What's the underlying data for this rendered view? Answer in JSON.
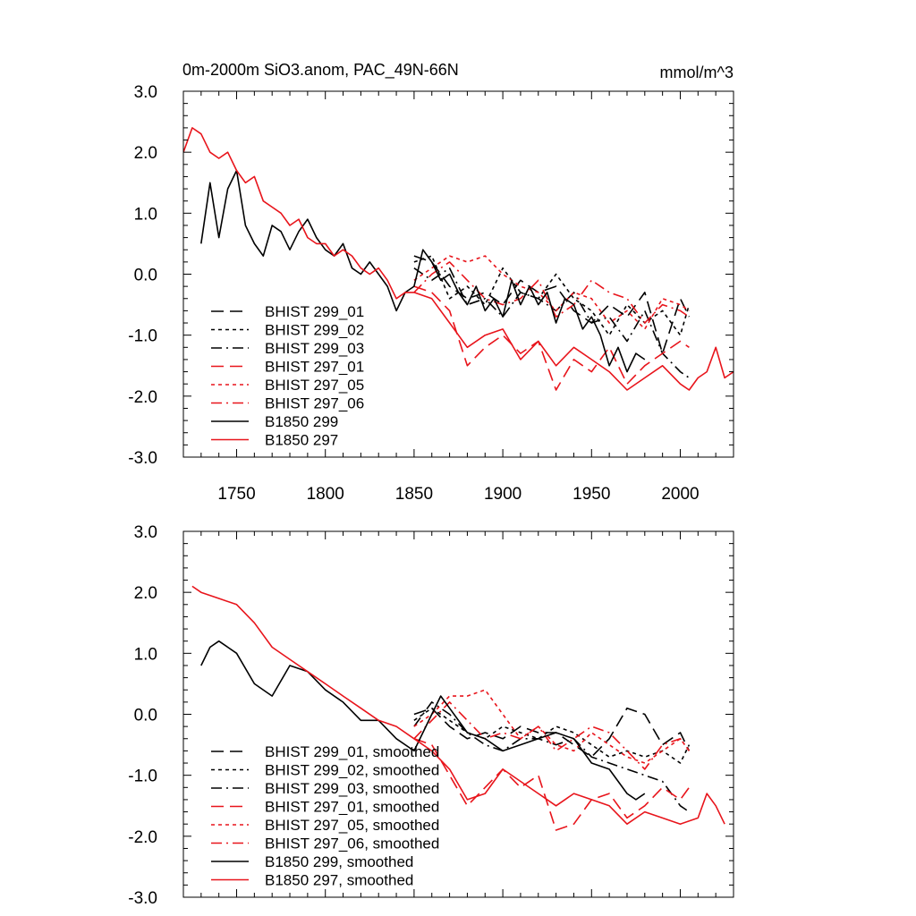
{
  "chart_data": [
    {
      "type": "line",
      "title": "0m-2000m SiO3.anom, PAC_49N-66N",
      "units": "mmol/m^3",
      "xlim": [
        1720,
        2030
      ],
      "ylim": [
        -3.0,
        3.0
      ],
      "x_ticks": [
        1750,
        1800,
        1850,
        1900,
        1950,
        2000
      ],
      "x_tick_labels": [
        "1750",
        "1800",
        "1850",
        "1900",
        "1950",
        "2000"
      ],
      "y_ticks": [
        3.0,
        2.0,
        1.0,
        0.0,
        -1.0,
        -2.0,
        -3.0
      ],
      "y_tick_labels": [
        "3.0",
        "2.0",
        "1.0",
        "0.0",
        "-1.0",
        "-2.0",
        "-3.0"
      ],
      "grid": false,
      "legend_position": "bottom-left",
      "series": [
        {
          "name": "BHIST 299_01",
          "color": "#000000",
          "dash": "long-dash",
          "x": [
            1850,
            1860,
            1870,
            1880,
            1890,
            1900,
            1910,
            1920,
            1930,
            1940,
            1950,
            1960,
            1970,
            1980,
            1990,
            2000,
            2005
          ],
          "y": [
            0.3,
            0.2,
            -0.2,
            -0.4,
            -0.3,
            -0.5,
            -0.1,
            -0.3,
            -0.2,
            -0.6,
            -0.8,
            -0.5,
            -0.7,
            -0.3,
            -1.3,
            -0.4,
            -0.7
          ]
        },
        {
          "name": "BHIST 299_02",
          "color": "#000000",
          "dash": "short-dash",
          "x": [
            1850,
            1860,
            1870,
            1880,
            1890,
            1900,
            1910,
            1920,
            1930,
            1940,
            1950,
            1960,
            1970,
            1980,
            1990,
            2000,
            2005
          ],
          "y": [
            0.2,
            0.3,
            -0.4,
            -0.2,
            -0.5,
            0.1,
            -0.3,
            -0.4,
            0.0,
            -0.4,
            -0.6,
            -1.0,
            -0.5,
            -0.8,
            -0.6,
            -1.0,
            -0.5
          ]
        },
        {
          "name": "BHIST 299_03",
          "color": "#000000",
          "dash": "dash-dot",
          "x": [
            1850,
            1860,
            1870,
            1880,
            1890,
            1900,
            1910,
            1920,
            1930,
            1940,
            1950,
            1960,
            1970,
            1980,
            1990,
            2000,
            2005
          ],
          "y": [
            0.1,
            -0.1,
            0.1,
            -0.5,
            -0.4,
            -0.7,
            -0.3,
            -0.4,
            -0.6,
            -0.3,
            -0.8,
            -0.7,
            -1.1,
            -0.6,
            -1.3,
            -1.6,
            -1.7
          ]
        },
        {
          "name": "BHIST 297_01",
          "color": "#e8141b",
          "dash": "long-dash",
          "x": [
            1850,
            1860,
            1870,
            1880,
            1890,
            1900,
            1910,
            1920,
            1930,
            1940,
            1950,
            1960,
            1970,
            1980,
            1990,
            2000,
            2005
          ],
          "y": [
            -0.2,
            -0.3,
            -0.6,
            -1.5,
            -1.2,
            -1.0,
            -1.3,
            -1.1,
            -1.9,
            -1.4,
            -1.6,
            -1.2,
            -1.8,
            -1.5,
            -1.3,
            -1.1,
            -1.2
          ]
        },
        {
          "name": "BHIST 297_05",
          "color": "#e8141b",
          "dash": "short-dash",
          "x": [
            1850,
            1860,
            1870,
            1880,
            1890,
            1900,
            1910,
            1920,
            1930,
            1940,
            1950,
            1960,
            1970,
            1980,
            1990,
            2000,
            2005
          ],
          "y": [
            -0.1,
            0.1,
            0.3,
            0.2,
            0.3,
            0.0,
            -0.2,
            -0.3,
            -0.6,
            -0.3,
            -0.4,
            -0.8,
            -0.6,
            -0.9,
            -0.4,
            -0.5,
            -0.6
          ]
        },
        {
          "name": "BHIST 297_06",
          "color": "#e8141b",
          "dash": "dash-dot",
          "x": [
            1850,
            1860,
            1870,
            1880,
            1890,
            1900,
            1910,
            1920,
            1930,
            1940,
            1950,
            1960,
            1970,
            1980,
            1990,
            2000,
            2005
          ],
          "y": [
            -0.3,
            0.0,
            0.2,
            -0.1,
            -0.4,
            -0.5,
            -0.4,
            -0.1,
            -0.7,
            -0.5,
            -0.1,
            -0.3,
            -0.4,
            -0.8,
            -0.5,
            -0.6,
            -0.7
          ]
        },
        {
          "name": "B1850 299",
          "color": "#000000",
          "dash": "solid",
          "x": [
            1730,
            1735,
            1740,
            1745,
            1750,
            1755,
            1760,
            1765,
            1770,
            1775,
            1780,
            1785,
            1790,
            1795,
            1800,
            1805,
            1810,
            1815,
            1820,
            1825,
            1830,
            1835,
            1840,
            1845,
            1850,
            1855,
            1860,
            1865,
            1870,
            1875,
            1880,
            1885,
            1890,
            1895,
            1900,
            1905,
            1910,
            1915,
            1920,
            1925,
            1930,
            1935,
            1940,
            1945,
            1950,
            1955,
            1960,
            1965,
            1970,
            1975,
            1980
          ],
          "y": [
            0.5,
            1.5,
            0.6,
            1.4,
            1.7,
            0.8,
            0.5,
            0.3,
            0.8,
            0.7,
            0.4,
            0.7,
            0.9,
            0.6,
            0.4,
            0.3,
            0.5,
            0.1,
            0.0,
            0.2,
            0.0,
            -0.2,
            -0.6,
            -0.3,
            -0.2,
            0.4,
            0.2,
            -0.1,
            0.0,
            -0.3,
            -0.5,
            -0.2,
            -0.6,
            -0.4,
            -0.7,
            -0.1,
            -0.5,
            -0.2,
            -0.5,
            -0.3,
            -0.8,
            -0.4,
            -0.5,
            -0.9,
            -0.7,
            -1.0,
            -1.5,
            -1.2,
            -1.6,
            -1.3,
            -1.4
          ]
        },
        {
          "name": "B1850 297",
          "color": "#e8141b",
          "dash": "solid",
          "x": [
            1720,
            1725,
            1730,
            1735,
            1740,
            1745,
            1750,
            1755,
            1760,
            1765,
            1770,
            1775,
            1780,
            1785,
            1790,
            1795,
            1800,
            1805,
            1810,
            1815,
            1820,
            1825,
            1830,
            1835,
            1840,
            1845,
            1850,
            1860,
            1870,
            1880,
            1890,
            1900,
            1910,
            1920,
            1930,
            1940,
            1950,
            1960,
            1970,
            1980,
            1990,
            2000,
            2005,
            2010,
            2015,
            2020,
            2025,
            2030
          ],
          "y": [
            2.0,
            2.4,
            2.3,
            2.0,
            1.9,
            2.0,
            1.7,
            1.5,
            1.6,
            1.2,
            1.1,
            1.0,
            0.8,
            0.9,
            0.6,
            0.5,
            0.5,
            0.3,
            0.4,
            0.3,
            0.1,
            0.0,
            0.1,
            -0.1,
            -0.4,
            -0.3,
            -0.3,
            -0.4,
            -0.8,
            -1.2,
            -1.0,
            -0.9,
            -1.4,
            -1.1,
            -1.5,
            -1.2,
            -1.4,
            -1.6,
            -1.9,
            -1.7,
            -1.5,
            -1.8,
            -1.9,
            -1.7,
            -1.6,
            -1.2,
            -1.7,
            -1.6
          ]
        }
      ]
    },
    {
      "type": "line",
      "xlim": [
        1720,
        2030
      ],
      "ylim": [
        -3.0,
        3.0
      ],
      "y_ticks": [
        3.0,
        2.0,
        1.0,
        0.0,
        -1.0,
        -2.0,
        -3.0
      ],
      "y_tick_labels": [
        "3.0",
        "2.0",
        "1.0",
        "0.0",
        "-1.0",
        "-2.0",
        "-3.0"
      ],
      "grid": false,
      "legend_position": "bottom-left",
      "series": [
        {
          "name": "BHIST 299_01, smoothed",
          "color": "#000000",
          "dash": "long-dash",
          "x": [
            1850,
            1860,
            1870,
            1880,
            1890,
            1900,
            1910,
            1920,
            1930,
            1940,
            1950,
            1960,
            1970,
            1980,
            1990,
            2000,
            2005
          ],
          "y": [
            0.0,
            0.1,
            -0.2,
            -0.4,
            -0.3,
            -0.4,
            -0.2,
            -0.3,
            -0.3,
            -0.5,
            -0.7,
            -0.4,
            0.1,
            0.0,
            -0.5,
            -0.3,
            -0.6
          ]
        },
        {
          "name": "BHIST 299_02, smoothed",
          "color": "#000000",
          "dash": "short-dash",
          "x": [
            1850,
            1860,
            1870,
            1880,
            1890,
            1900,
            1910,
            1920,
            1930,
            1940,
            1950,
            1960,
            1970,
            1980,
            1990,
            2000,
            2005
          ],
          "y": [
            -0.1,
            0.1,
            -0.1,
            -0.3,
            -0.4,
            -0.2,
            -0.3,
            -0.4,
            -0.2,
            -0.3,
            -0.5,
            -0.7,
            -0.6,
            -0.7,
            -0.6,
            -0.8,
            -0.5
          ]
        },
        {
          "name": "BHIST 299_03, smoothed",
          "color": "#000000",
          "dash": "dash-dot",
          "x": [
            1850,
            1860,
            1870,
            1880,
            1890,
            1900,
            1910,
            1920,
            1930,
            1940,
            1950,
            1960,
            1970,
            1980,
            1990,
            2000,
            2005
          ],
          "y": [
            -0.2,
            0.2,
            0.0,
            -0.3,
            -0.5,
            -0.6,
            -0.4,
            -0.4,
            -0.5,
            -0.4,
            -0.7,
            -0.8,
            -0.9,
            -1.0,
            -1.1,
            -1.5,
            -1.6
          ]
        },
        {
          "name": "BHIST 297_01, smoothed",
          "color": "#e8141b",
          "dash": "long-dash",
          "x": [
            1850,
            1860,
            1870,
            1880,
            1890,
            1900,
            1910,
            1920,
            1930,
            1940,
            1950,
            1960,
            1970,
            1980,
            1990,
            2000,
            2005
          ],
          "y": [
            -0.4,
            -0.5,
            -1.0,
            -1.5,
            -1.2,
            -0.9,
            -1.2,
            -1.0,
            -1.9,
            -1.8,
            -1.4,
            -1.3,
            -1.7,
            -1.5,
            -1.2,
            -1.4,
            -1.2
          ]
        },
        {
          "name": "BHIST 297_05, smoothed",
          "color": "#e8141b",
          "dash": "short-dash",
          "x": [
            1850,
            1860,
            1870,
            1880,
            1890,
            1900,
            1910,
            1920,
            1930,
            1940,
            1950,
            1960,
            1970,
            1980,
            1990,
            2000,
            2005
          ],
          "y": [
            -0.2,
            0.0,
            0.3,
            0.3,
            0.4,
            0.0,
            -0.4,
            -0.2,
            -0.5,
            -0.6,
            -0.3,
            -0.5,
            -0.7,
            -0.8,
            -0.6,
            -0.4,
            -0.6
          ]
        },
        {
          "name": "BHIST 297_06, smoothed",
          "color": "#e8141b",
          "dash": "dash-dot",
          "x": [
            1850,
            1860,
            1870,
            1880,
            1890,
            1900,
            1910,
            1920,
            1930,
            1940,
            1950,
            1960,
            1970,
            1980,
            1990,
            2000,
            2005
          ],
          "y": [
            -0.4,
            -0.1,
            0.2,
            -0.1,
            -0.4,
            -0.3,
            -0.4,
            -0.2,
            -0.6,
            -0.4,
            -0.2,
            -0.3,
            -0.6,
            -0.9,
            -0.5,
            -0.4,
            -0.6
          ]
        },
        {
          "name": "B1850 299, smoothed",
          "color": "#000000",
          "dash": "solid",
          "x": [
            1730,
            1735,
            1740,
            1745,
            1750,
            1760,
            1770,
            1780,
            1790,
            1800,
            1810,
            1820,
            1830,
            1840,
            1850,
            1860,
            1865,
            1870,
            1880,
            1890,
            1900,
            1910,
            1920,
            1930,
            1940,
            1950,
            1960,
            1970,
            1975,
            1980
          ],
          "y": [
            0.8,
            1.1,
            1.2,
            1.1,
            1.0,
            0.5,
            0.3,
            0.8,
            0.7,
            0.4,
            0.2,
            -0.1,
            -0.1,
            -0.4,
            -0.6,
            0.0,
            0.3,
            0.1,
            -0.3,
            -0.4,
            -0.6,
            -0.5,
            -0.4,
            -0.3,
            -0.4,
            -0.8,
            -0.9,
            -1.3,
            -1.4,
            -1.3
          ]
        },
        {
          "name": "B1850 297, smoothed",
          "color": "#e8141b",
          "dash": "solid",
          "x": [
            1725,
            1730,
            1740,
            1750,
            1760,
            1770,
            1780,
            1790,
            1800,
            1810,
            1820,
            1830,
            1840,
            1850,
            1860,
            1870,
            1880,
            1890,
            1900,
            1910,
            1920,
            1930,
            1940,
            1950,
            1960,
            1970,
            1980,
            1990,
            2000,
            2010,
            2015,
            2020,
            2025
          ],
          "y": [
            2.1,
            2.0,
            1.9,
            1.8,
            1.5,
            1.1,
            0.9,
            0.7,
            0.5,
            0.3,
            0.1,
            -0.1,
            -0.2,
            -0.4,
            -0.6,
            -0.9,
            -1.4,
            -1.3,
            -0.9,
            -1.1,
            -1.3,
            -1.5,
            -1.3,
            -1.4,
            -1.5,
            -1.8,
            -1.6,
            -1.7,
            -1.8,
            -1.7,
            -1.3,
            -1.5,
            -1.8
          ]
        }
      ]
    }
  ]
}
